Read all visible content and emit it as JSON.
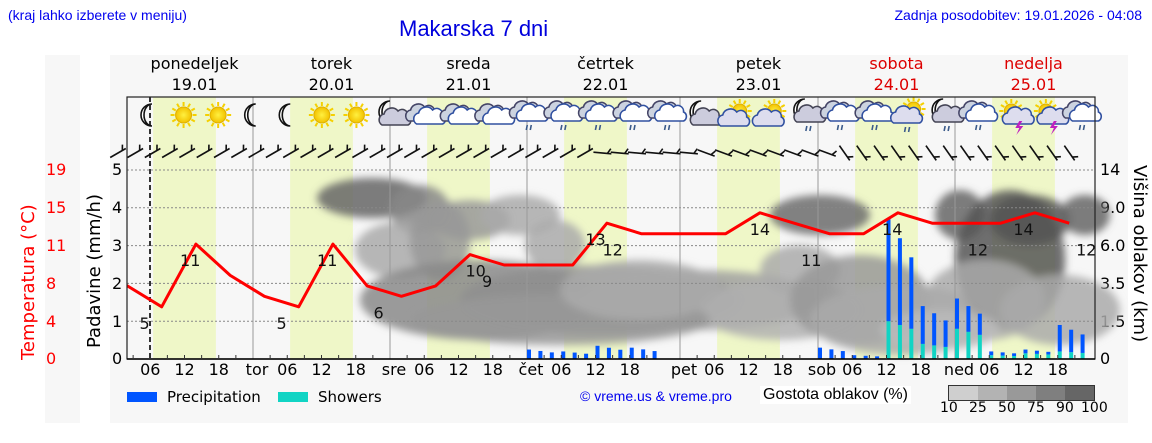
{
  "header": {
    "location_hint": "(kraj lahko izberete v meniju)",
    "title": "Makarska 7 dni",
    "last_update": "Zadnja posodobitev: 19.01.2026 - 04:08"
  },
  "days": [
    {
      "name": "ponedeljek",
      "date": "19.01",
      "weekend": false
    },
    {
      "name": "torek",
      "date": "20.01",
      "weekend": false
    },
    {
      "name": "sreda",
      "date": "21.01",
      "weekend": false
    },
    {
      "name": "četrtek",
      "date": "22.01",
      "weekend": false
    },
    {
      "name": "petek",
      "date": "23.01",
      "weekend": false
    },
    {
      "name": "sobota",
      "date": "24.01",
      "weekend": true
    },
    {
      "name": "nedelja",
      "date": "25.01",
      "weekend": true
    }
  ],
  "axes": {
    "temperature_label": "Temperatura (°C)",
    "precipitation_label": "Padavine (mm/h)",
    "cloud_height_label": "Višina oblakov (km)",
    "temperature_ticks": [
      "19",
      "15",
      "11",
      "8",
      "4",
      "0"
    ],
    "precipitation_ticks": [
      "5",
      "4",
      "3",
      "2",
      "1",
      "0"
    ],
    "cloud_height_ticks": [
      "14",
      "9.0",
      "6.0",
      "3.5",
      "1.5",
      "0"
    ],
    "x_ticks": [
      "06",
      "12",
      "18",
      "tor",
      "06",
      "12",
      "18",
      "sre",
      "06",
      "12",
      "18",
      "čet",
      "06",
      "12",
      "18",
      "pet",
      "06",
      "12",
      "18",
      "sob",
      "06",
      "12",
      "18",
      "ned",
      "06",
      "12",
      "18"
    ]
  },
  "legend": {
    "precipitation": "Precipitation",
    "showers": "Showers",
    "precipitation_color": "#0055ff",
    "showers_color": "#11d4c4",
    "copyright": "© vreme.us & vreme.pro",
    "cloud_density_label": "Gostota oblakov (%)",
    "cloud_density_scale": [
      "10",
      "25",
      "50",
      "75",
      "90",
      "100"
    ],
    "cloud_density_colors": [
      "#cfcfcf",
      "#b3b3b3",
      "#999999",
      "#7f7f7f",
      "#666666",
      "#4d4d4d"
    ]
  },
  "colors": {
    "temperature_line": "#ff0000",
    "daylight_band": "#eff7c8",
    "title_blue": "#0000dd",
    "weekend_red": "#dd0000"
  },
  "weather_icons": [
    "moon",
    "sun",
    "sun",
    "moon",
    "moon",
    "sun",
    "sun",
    "moon-cloud",
    "cloud",
    "cloud",
    "cloud",
    "cloud-rain",
    "cloud-rain",
    "cloud-rain",
    "cloud-rain",
    "cloud-rain",
    "moon-cloud",
    "sun-cloud",
    "sun-cloud",
    "moon-cloud-rain",
    "cloud-rain",
    "cloud-rain",
    "sun-cloud-rain",
    "moon-cloud-rain",
    "cloud-rain",
    "sun-thunder",
    "sun-thunder",
    "cloud-rain"
  ],
  "chart_data": {
    "type": "line",
    "title": "Makarska 7 dni",
    "xlabel": "",
    "ylabel": "Padavine (mm/h)",
    "ylim": [
      0,
      5
    ],
    "temperature_ylim": [
      0,
      19
    ],
    "categories": [
      "Mon 00",
      "Mon 06",
      "Mon 12",
      "Mon 18",
      "Tue 00",
      "Tue 06",
      "Tue 12",
      "Tue 18",
      "Wed 00",
      "Wed 06",
      "Wed 12",
      "Wed 18",
      "Thu 00",
      "Thu 06",
      "Thu 12",
      "Thu 18",
      "Fri 00",
      "Fri 06",
      "Fri 12",
      "Fri 18",
      "Sat 00",
      "Sat 06",
      "Sat 12",
      "Sat 18",
      "Sun 00",
      "Sun 06",
      "Sun 12",
      "Sun 18"
    ],
    "series": [
      {
        "name": "Temperatura (°C)",
        "values": [
          7,
          5,
          11,
          8,
          6,
          5,
          11,
          7,
          6,
          7,
          10,
          9,
          9,
          9,
          13,
          12,
          12,
          12,
          14,
          13,
          12,
          12,
          14,
          13,
          13,
          13,
          14,
          13
        ]
      },
      {
        "name": "Precipitation (mm/h)",
        "values": [
          0,
          0,
          0,
          0,
          0,
          0,
          0,
          0,
          0,
          0,
          0,
          0,
          0.25,
          0.2,
          0.35,
          0.3,
          0,
          0,
          0,
          0,
          0.3,
          0.1,
          2.7,
          1.0,
          0.8,
          0.1,
          0.1,
          0.7
        ]
      },
      {
        "name": "Showers (mm/h)",
        "values": [
          0,
          0,
          0,
          0,
          0,
          0,
          0,
          0,
          0,
          0,
          0,
          0,
          0,
          0,
          0,
          0,
          0,
          0,
          0,
          0,
          0,
          0,
          1.0,
          0.4,
          0.8,
          0.1,
          0.15,
          0.2
        ]
      }
    ],
    "temperature_labels": [
      {
        "day": "Mon",
        "hour": 5,
        "value": 5
      },
      {
        "day": "Mon",
        "hour": 13,
        "value": 11
      },
      {
        "day": "Tue",
        "hour": 5,
        "value": 5
      },
      {
        "day": "Tue",
        "hour": 13,
        "value": 11
      },
      {
        "day": "Tue",
        "hour": 22,
        "value": 6
      },
      {
        "day": "Wed",
        "hour": 15,
        "value": 10
      },
      {
        "day": "Wed",
        "hour": 17,
        "value": 9
      },
      {
        "day": "Thu",
        "hour": 12,
        "value": 13
      },
      {
        "day": "Thu",
        "hour": 15,
        "value": 12
      },
      {
        "day": "Fri",
        "hour": 14,
        "value": 14
      },
      {
        "day": "Fri",
        "hour": 23,
        "value": 11
      },
      {
        "day": "Sat",
        "hour": 13,
        "value": 14
      },
      {
        "day": "Sun",
        "hour": 4,
        "value": 12
      },
      {
        "day": "Sun",
        "hour": 12,
        "value": 14
      },
      {
        "day": "Sun",
        "hour": 23,
        "value": 12
      }
    ],
    "grid": true,
    "legend_position": "bottom"
  }
}
